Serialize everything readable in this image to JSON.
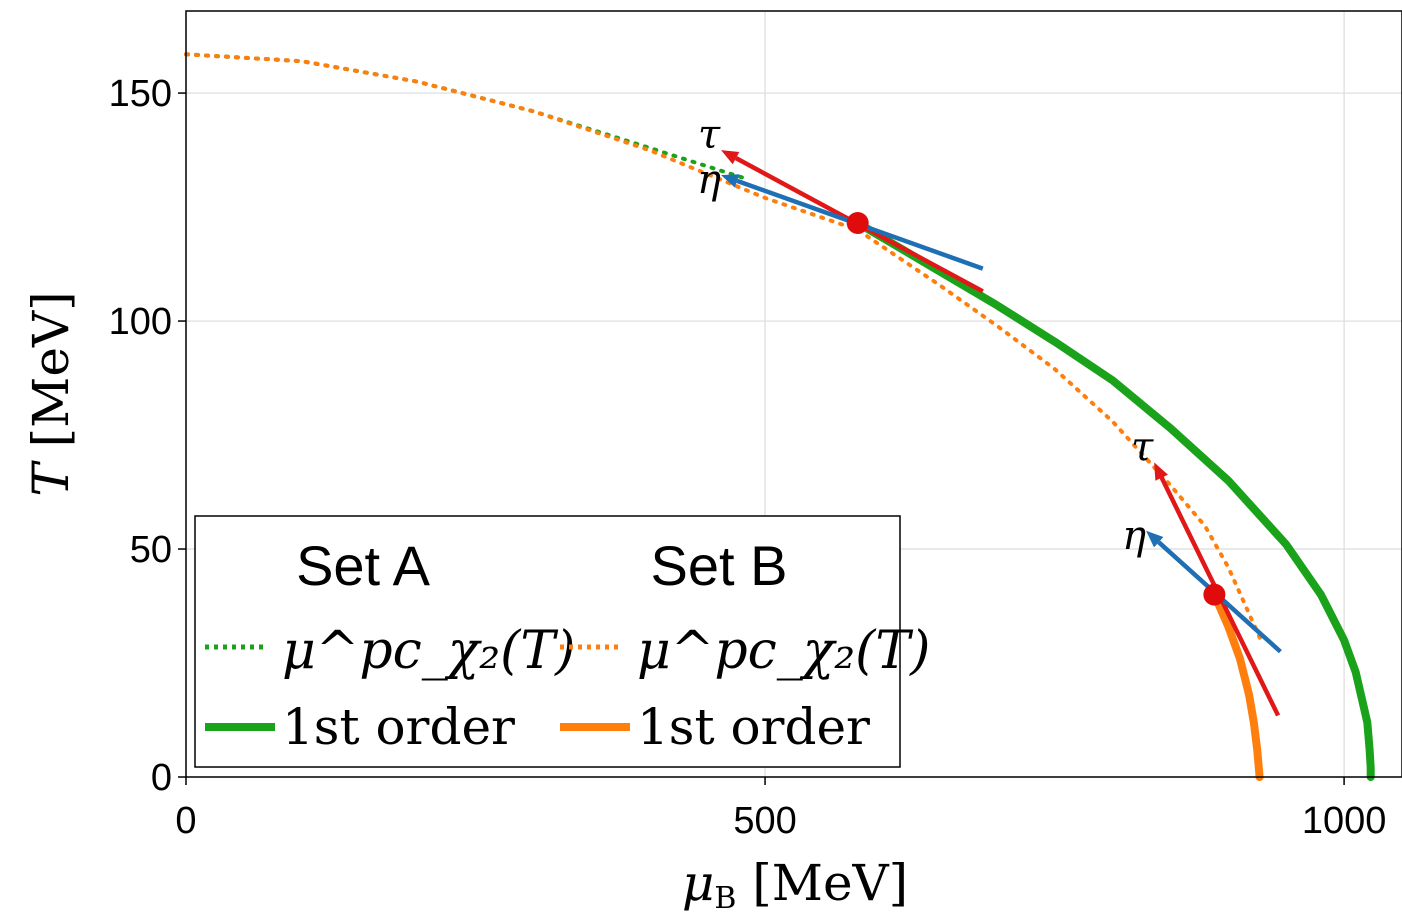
{
  "chart_data": {
    "type": "line",
    "title": "",
    "xlabel": {
      "symbol": "μ",
      "subscript": "B",
      "unit": " [MeV]"
    },
    "ylabel": {
      "symbol": "T",
      "unit": " [MeV]"
    },
    "xlim": [
      0,
      1050
    ],
    "ylim": [
      0,
      168
    ],
    "xticks": [
      0,
      500,
      1000
    ],
    "yticks": [
      0,
      50,
      100,
      150
    ],
    "grid": true,
    "legend_position": "bottom-left",
    "legend_columns": [
      {
        "header": "Set A",
        "dotted_label": "μ^pc_χ₂(T)",
        "solid_label": "1st order"
      },
      {
        "header": "Set B",
        "dotted_label": "μ^pc_χ₂(T)",
        "solid_label": "1st order"
      }
    ],
    "colors": {
      "setA": "#1aa31a",
      "setB": "#ff7f0e",
      "tau": "#e01818",
      "eta": "#1f6fb4",
      "point": "#e00b0b"
    },
    "series": [
      {
        "set": "A",
        "style": "dotted",
        "x": [
          0,
          100,
          200,
          300,
          400,
          480
        ],
        "y": [
          158.5,
          157,
          152.5,
          146,
          138,
          131.5
        ]
      },
      {
        "set": "B",
        "style": "dotted",
        "x": [
          0,
          100,
          200,
          300,
          400,
          500,
          580,
          650,
          700,
          750,
          800,
          850,
          880,
          900,
          930
        ],
        "y": [
          158.5,
          157,
          152.5,
          146,
          137.5,
          127,
          120,
          108,
          99,
          89.5,
          78,
          64,
          55,
          46,
          29
        ]
      },
      {
        "set": "A",
        "style": "solid",
        "x": [
          580,
          650,
          700,
          750,
          800,
          850,
          900,
          950,
          980,
          1000,
          1010,
          1020,
          1022,
          1023,
          1023
        ],
        "y": [
          121.5,
          111,
          103.5,
          95.5,
          87,
          76.5,
          65,
          51,
          40,
          30,
          23,
          12,
          6,
          2,
          0
        ]
      },
      {
        "set": "B",
        "style": "solid",
        "x": [
          888,
          900,
          910,
          918,
          922,
          925,
          927
        ],
        "y": [
          40,
          33,
          26,
          18,
          12,
          6,
          0
        ]
      }
    ],
    "points": [
      {
        "x": 580,
        "y": 121.5
      },
      {
        "x": 888,
        "y": 40
      }
    ],
    "arrows": [
      {
        "label": "τ",
        "kind": "tau",
        "from": [
          688,
          106.5
        ],
        "to": [
          462,
          137.5
        ]
      },
      {
        "label": "η",
        "kind": "eta",
        "from": [
          688,
          111.5
        ],
        "to": [
          462,
          132
        ]
      },
      {
        "label": "τ",
        "kind": "tau",
        "from": [
          943,
          13.5
        ],
        "to": [
          836,
          69
        ]
      },
      {
        "label": "η",
        "kind": "eta",
        "from": [
          945,
          27.5
        ],
        "to": [
          829,
          54
        ]
      }
    ]
  }
}
